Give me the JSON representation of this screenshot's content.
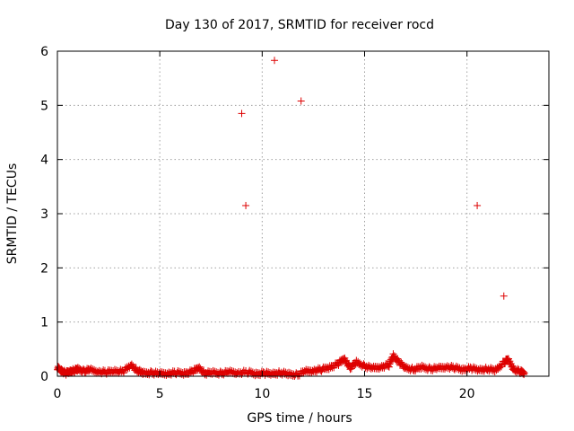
{
  "chart_data": {
    "type": "scatter",
    "title": "Day 130 of 2017, SRMTID for receiver rocd",
    "xlabel": "GPS time / hours",
    "ylabel": "SRMTID / TECUs",
    "xlim": [
      0,
      24
    ],
    "ylim": [
      0,
      6
    ],
    "xticks": [
      0,
      5,
      10,
      15,
      20
    ],
    "yticks": [
      0,
      1,
      2,
      3,
      4,
      5,
      6
    ],
    "grid": true,
    "marker": "+",
    "color": "#dd0000",
    "series": [
      {
        "name": "SRMTID",
        "outliers": [
          {
            "x": 9.0,
            "y": 4.85
          },
          {
            "x": 9.2,
            "y": 3.15
          },
          {
            "x": 10.6,
            "y": 5.83
          },
          {
            "x": 11.9,
            "y": 5.08
          },
          {
            "x": 20.5,
            "y": 3.15
          },
          {
            "x": 21.8,
            "y": 1.48
          }
        ],
        "baseline": [
          {
            "x": 0.0,
            "y": 0.15
          },
          {
            "x": 0.2,
            "y": 0.1
          },
          {
            "x": 0.4,
            "y": 0.05
          },
          {
            "x": 0.6,
            "y": 0.08
          },
          {
            "x": 0.8,
            "y": 0.1
          },
          {
            "x": 1.0,
            "y": 0.12
          },
          {
            "x": 1.3,
            "y": 0.09
          },
          {
            "x": 1.6,
            "y": 0.11
          },
          {
            "x": 2.0,
            "y": 0.08
          },
          {
            "x": 2.4,
            "y": 0.07
          },
          {
            "x": 2.8,
            "y": 0.09
          },
          {
            "x": 3.2,
            "y": 0.08
          },
          {
            "x": 3.6,
            "y": 0.2
          },
          {
            "x": 3.9,
            "y": 0.1
          },
          {
            "x": 4.2,
            "y": 0.05
          },
          {
            "x": 4.6,
            "y": 0.06
          },
          {
            "x": 5.0,
            "y": 0.04
          },
          {
            "x": 5.4,
            "y": 0.05
          },
          {
            "x": 5.8,
            "y": 0.06
          },
          {
            "x": 6.2,
            "y": 0.05
          },
          {
            "x": 6.6,
            "y": 0.08
          },
          {
            "x": 6.9,
            "y": 0.15
          },
          {
            "x": 7.2,
            "y": 0.05
          },
          {
            "x": 7.6,
            "y": 0.06
          },
          {
            "x": 8.0,
            "y": 0.05
          },
          {
            "x": 8.4,
            "y": 0.07
          },
          {
            "x": 8.8,
            "y": 0.06
          },
          {
            "x": 9.3,
            "y": 0.07
          },
          {
            "x": 9.7,
            "y": 0.04
          },
          {
            "x": 10.1,
            "y": 0.05
          },
          {
            "x": 10.5,
            "y": 0.04
          },
          {
            "x": 10.9,
            "y": 0.06
          },
          {
            "x": 11.3,
            "y": 0.03
          },
          {
            "x": 11.7,
            "y": 0.02
          },
          {
            "x": 12.1,
            "y": 0.08
          },
          {
            "x": 12.5,
            "y": 0.1
          },
          {
            "x": 12.9,
            "y": 0.12
          },
          {
            "x": 13.3,
            "y": 0.16
          },
          {
            "x": 13.7,
            "y": 0.22
          },
          {
            "x": 14.0,
            "y": 0.32
          },
          {
            "x": 14.3,
            "y": 0.15
          },
          {
            "x": 14.6,
            "y": 0.25
          },
          {
            "x": 15.0,
            "y": 0.18
          },
          {
            "x": 15.4,
            "y": 0.14
          },
          {
            "x": 15.8,
            "y": 0.17
          },
          {
            "x": 16.2,
            "y": 0.2
          },
          {
            "x": 16.4,
            "y": 0.38
          },
          {
            "x": 16.7,
            "y": 0.24
          },
          {
            "x": 17.0,
            "y": 0.15
          },
          {
            "x": 17.4,
            "y": 0.12
          },
          {
            "x": 17.8,
            "y": 0.16
          },
          {
            "x": 18.2,
            "y": 0.13
          },
          {
            "x": 18.6,
            "y": 0.14
          },
          {
            "x": 19.0,
            "y": 0.17
          },
          {
            "x": 19.4,
            "y": 0.15
          },
          {
            "x": 19.8,
            "y": 0.12
          },
          {
            "x": 20.2,
            "y": 0.14
          },
          {
            "x": 20.6,
            "y": 0.11
          },
          {
            "x": 21.0,
            "y": 0.13
          },
          {
            "x": 21.4,
            "y": 0.1
          },
          {
            "x": 21.8,
            "y": 0.25
          },
          {
            "x": 22.0,
            "y": 0.3
          },
          {
            "x": 22.3,
            "y": 0.12
          },
          {
            "x": 22.6,
            "y": 0.08
          },
          {
            "x": 22.8,
            "y": 0.06
          }
        ]
      }
    ]
  }
}
